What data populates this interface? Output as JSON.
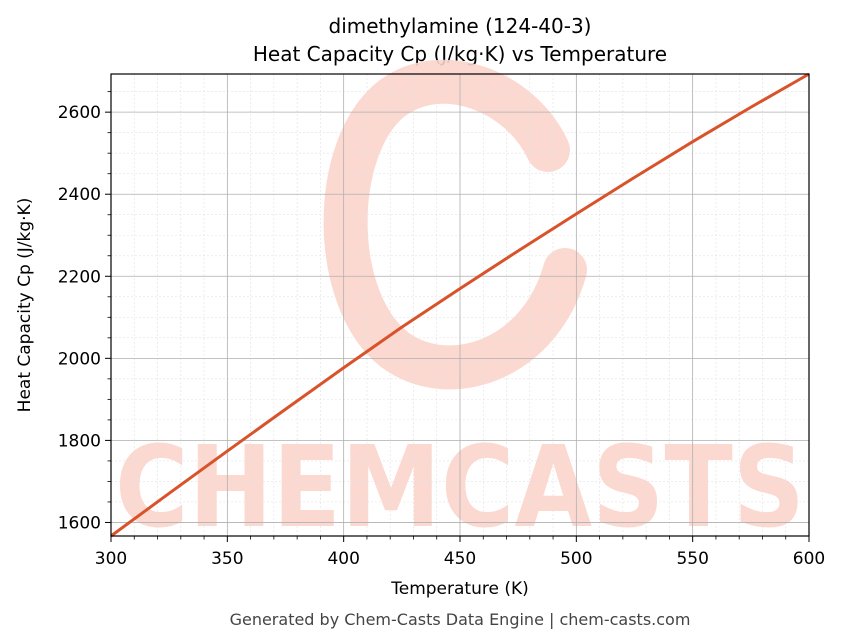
{
  "chart_data": {
    "type": "line",
    "title_line1": "dimethylamine (124-40-3)",
    "title_line2": "Heat Capacity Cp (J/kg·K) vs Temperature",
    "xlabel": "Temperature (K)",
    "ylabel": "Heat Capacity Cp (J/kg·K)",
    "xlim": [
      300,
      600
    ],
    "ylim": [
      1567,
      2693
    ],
    "xticks": [
      300,
      350,
      400,
      450,
      500,
      550,
      600
    ],
    "yticks": [
      1600,
      1800,
      2000,
      2200,
      2400,
      2600
    ],
    "grid": true,
    "series": [
      {
        "color": "#d9532a",
        "x": [
          300,
          325,
          350,
          375,
          400,
          425,
          450,
          475,
          500,
          525,
          550,
          575,
          600
        ],
        "y": [
          1567,
          1671,
          1774,
          1876,
          1977,
          2076,
          2170,
          2262,
          2352,
          2441,
          2528,
          2612,
          2693
        ]
      }
    ]
  },
  "watermark": {
    "text": "CHEMCASTS",
    "color": "#fbd5cc"
  },
  "footer": {
    "text": "Generated by Chem-Casts Data Engine | chem-casts.com"
  }
}
